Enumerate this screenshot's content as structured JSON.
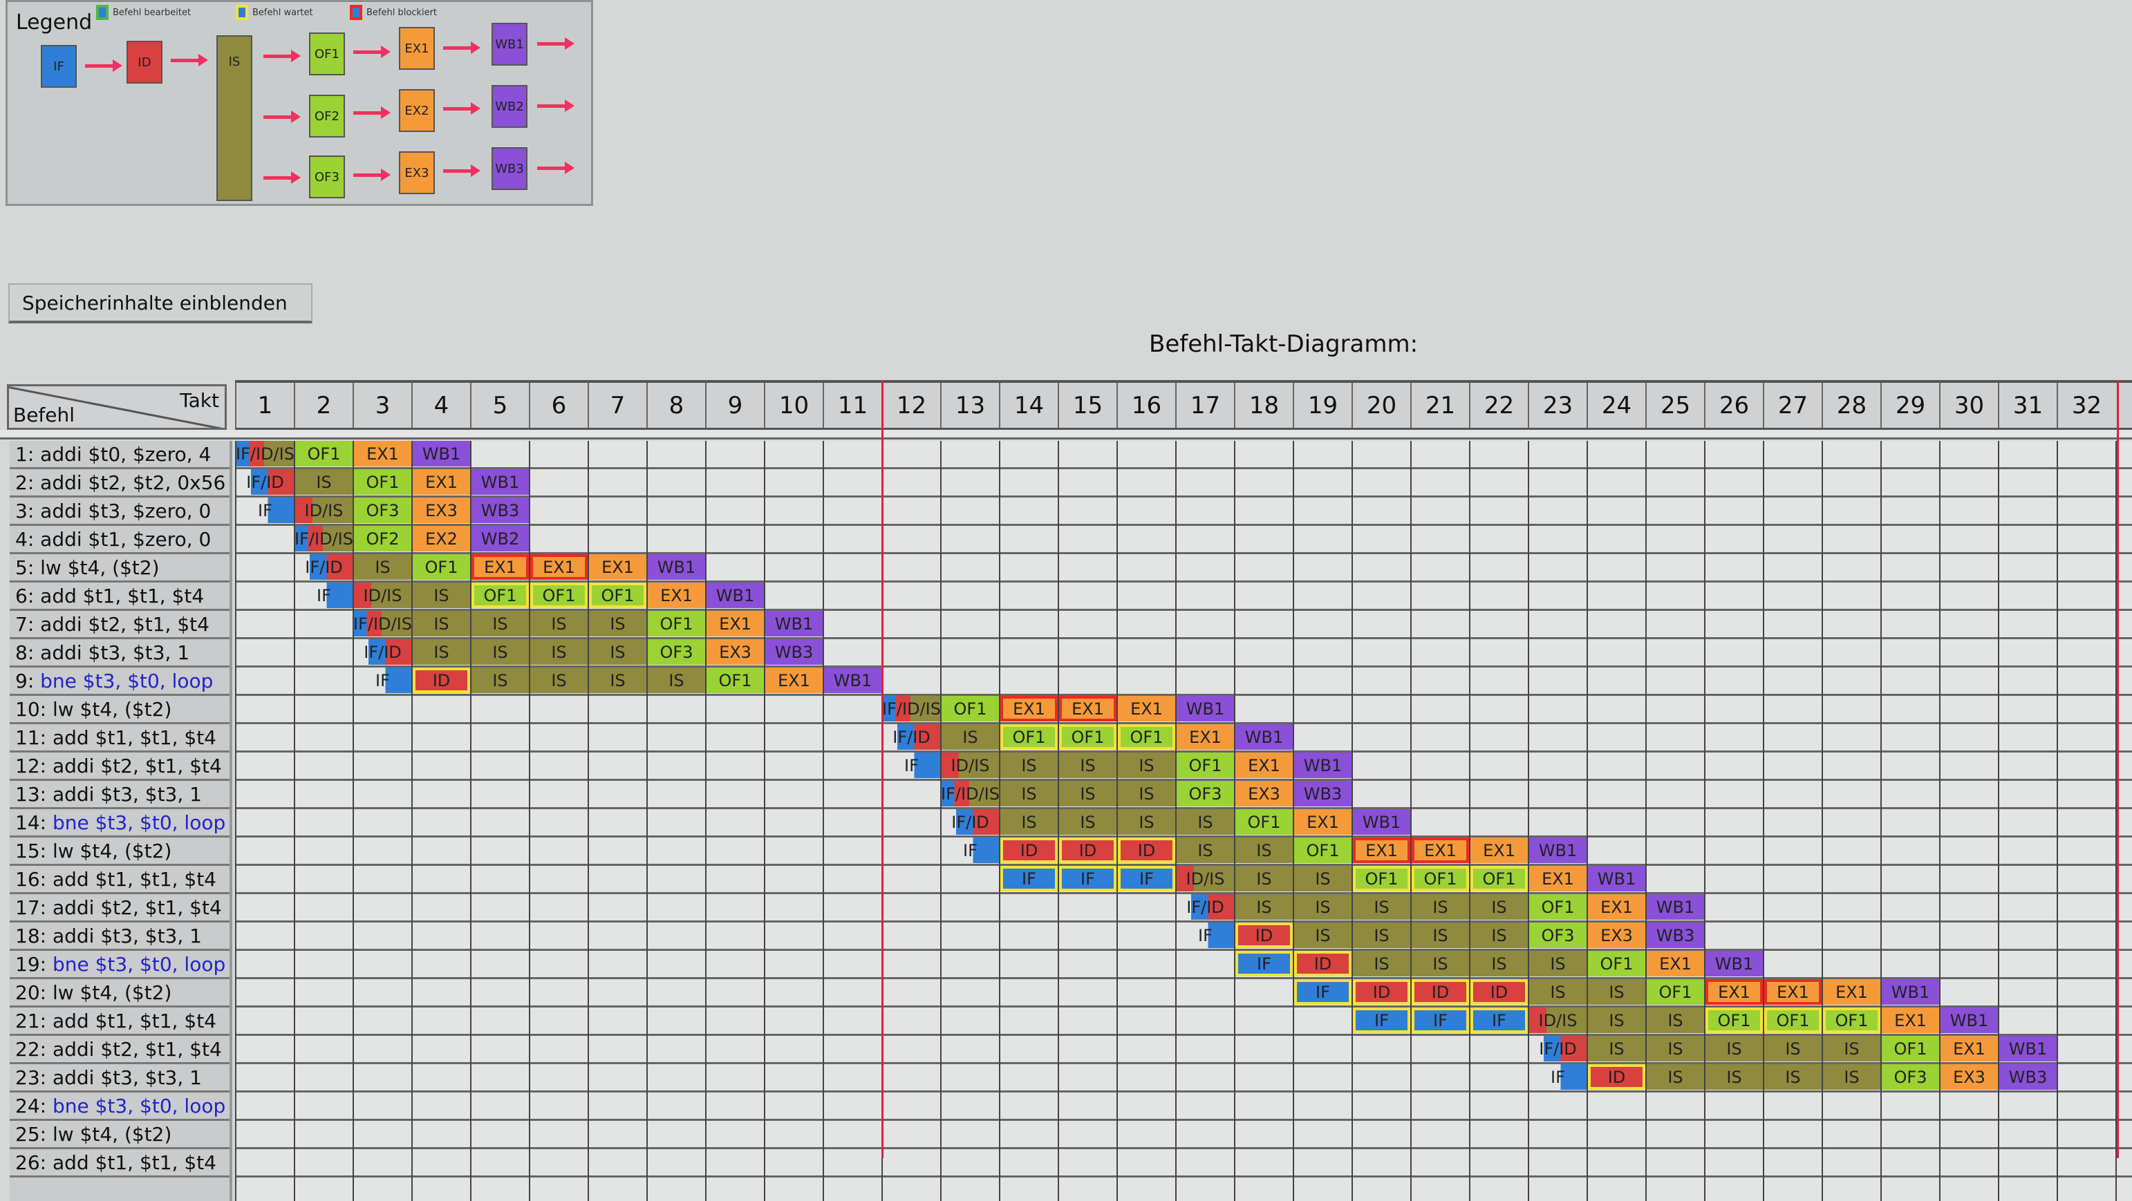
{
  "legend": {
    "title": "Legend",
    "keys": [
      {
        "label": "Befehl bearbeitet",
        "border": "#4ab84a"
      },
      {
        "label": "Befehl wartet",
        "border": "#f2e23a"
      },
      {
        "label": "Befehl blockiert",
        "border": "#ee2a20"
      }
    ],
    "stages": {
      "if": "IF",
      "id": "ID",
      "is": "IS",
      "of": [
        "OF1",
        "OF2",
        "OF3"
      ],
      "ex": [
        "EX1",
        "EX2",
        "EX3"
      ],
      "wb": [
        "WB1",
        "WB2",
        "WB3"
      ]
    }
  },
  "colors": {
    "IF": "#2f7fd8",
    "ID": "#d94040",
    "IS": "#8f8a3e",
    "OF": "#9bd234",
    "EX": "#f59a3a",
    "WB": "#8a50d8",
    "arrow": "#f03060",
    "marker": "#e0203a"
  },
  "show_memory_button": "Speicherinhalte einblenden",
  "diagram_title": "Befehl-Takt-Diagramm:",
  "corner": {
    "takt": "Takt",
    "befehl": "Befehl"
  },
  "cycles": [
    1,
    2,
    3,
    4,
    5,
    6,
    7,
    8,
    9,
    10,
    11,
    12,
    13,
    14,
    15,
    16,
    17,
    18,
    19,
    20,
    21,
    22,
    23,
    24,
    25,
    26,
    27,
    28,
    29,
    30,
    31,
    32
  ],
  "instructions": [
    {
      "num": "1:",
      "text": "addi $t0, $zero, 4",
      "branch": false,
      "cells": [
        {
          "c": 1,
          "t": "IF/ID/IS"
        },
        {
          "c": 2,
          "t": "OF1"
        },
        {
          "c": 3,
          "t": "EX1"
        },
        {
          "c": 4,
          "t": "WB1"
        }
      ]
    },
    {
      "num": "2:",
      "text": "addi $t2, $t2, 0x56",
      "branch": false,
      "cells": [
        {
          "c": 1,
          "t": "IF/ID"
        },
        {
          "c": 2,
          "t": "IS"
        },
        {
          "c": 3,
          "t": "OF1"
        },
        {
          "c": 4,
          "t": "EX1"
        },
        {
          "c": 5,
          "t": "WB1"
        }
      ]
    },
    {
      "num": "3:",
      "text": "addi $t3, $zero, 0",
      "branch": false,
      "cells": [
        {
          "c": 1,
          "t": "IF"
        },
        {
          "c": 2,
          "t": "ID/IS"
        },
        {
          "c": 3,
          "t": "OF3"
        },
        {
          "c": 4,
          "t": "EX3"
        },
        {
          "c": 5,
          "t": "WB3"
        }
      ]
    },
    {
      "num": "4:",
      "text": "addi $t1, $zero, 0",
      "branch": false,
      "cells": [
        {
          "c": 2,
          "t": "IF/ID/IS"
        },
        {
          "c": 3,
          "t": "OF2"
        },
        {
          "c": 4,
          "t": "EX2"
        },
        {
          "c": 5,
          "t": "WB2"
        }
      ]
    },
    {
      "num": "5:",
      "text": "lw $t4, ($t2)",
      "branch": false,
      "cells": [
        {
          "c": 2,
          "t": "IF/ID"
        },
        {
          "c": 3,
          "t": "IS"
        },
        {
          "c": 4,
          "t": "OF1"
        },
        {
          "c": 5,
          "t": "EX1",
          "m": "block"
        },
        {
          "c": 6,
          "t": "EX1",
          "m": "block"
        },
        {
          "c": 7,
          "t": "EX1"
        },
        {
          "c": 8,
          "t": "WB1"
        }
      ]
    },
    {
      "num": "6:",
      "text": "add $t1, $t1, $t4",
      "branch": false,
      "cells": [
        {
          "c": 2,
          "t": "IF"
        },
        {
          "c": 3,
          "t": "ID/IS"
        },
        {
          "c": 4,
          "t": "IS"
        },
        {
          "c": 5,
          "t": "OF1",
          "m": "wait"
        },
        {
          "c": 6,
          "t": "OF1",
          "m": "wait"
        },
        {
          "c": 7,
          "t": "OF1",
          "m": "wait"
        },
        {
          "c": 8,
          "t": "EX1"
        },
        {
          "c": 9,
          "t": "WB1"
        }
      ]
    },
    {
      "num": "7:",
      "text": "addi $t2, $t1, $t4",
      "branch": false,
      "cells": [
        {
          "c": 3,
          "t": "IF/ID/IS"
        },
        {
          "c": 4,
          "t": "IS"
        },
        {
          "c": 5,
          "t": "IS"
        },
        {
          "c": 6,
          "t": "IS"
        },
        {
          "c": 7,
          "t": "IS"
        },
        {
          "c": 8,
          "t": "OF1"
        },
        {
          "c": 9,
          "t": "EX1"
        },
        {
          "c": 10,
          "t": "WB1"
        }
      ]
    },
    {
      "num": "8:",
      "text": "addi $t3, $t3, 1",
      "branch": false,
      "cells": [
        {
          "c": 3,
          "t": "IF/ID"
        },
        {
          "c": 4,
          "t": "IS"
        },
        {
          "c": 5,
          "t": "IS"
        },
        {
          "c": 6,
          "t": "IS"
        },
        {
          "c": 7,
          "t": "IS"
        },
        {
          "c": 8,
          "t": "OF3"
        },
        {
          "c": 9,
          "t": "EX3"
        },
        {
          "c": 10,
          "t": "WB3"
        }
      ]
    },
    {
      "num": "9:",
      "text": "bne $t3, $t0, loop",
      "branch": true,
      "cells": [
        {
          "c": 3,
          "t": "IF"
        },
        {
          "c": 4,
          "t": "ID",
          "m": "wait"
        },
        {
          "c": 5,
          "t": "IS"
        },
        {
          "c": 6,
          "t": "IS"
        },
        {
          "c": 7,
          "t": "IS"
        },
        {
          "c": 8,
          "t": "IS"
        },
        {
          "c": 9,
          "t": "OF1"
        },
        {
          "c": 10,
          "t": "EX1"
        },
        {
          "c": 11,
          "t": "WB1"
        }
      ]
    },
    {
      "num": "10:",
      "text": "lw $t4, ($t2)",
      "branch": false,
      "cells": [
        {
          "c": 12,
          "t": "IF/ID/IS"
        },
        {
          "c": 13,
          "t": "OF1"
        },
        {
          "c": 14,
          "t": "EX1",
          "m": "block"
        },
        {
          "c": 15,
          "t": "EX1",
          "m": "block"
        },
        {
          "c": 16,
          "t": "EX1"
        },
        {
          "c": 17,
          "t": "WB1"
        }
      ]
    },
    {
      "num": "11:",
      "text": "add $t1, $t1, $t4",
      "branch": false,
      "cells": [
        {
          "c": 12,
          "t": "IF/ID"
        },
        {
          "c": 13,
          "t": "IS"
        },
        {
          "c": 14,
          "t": "OF1",
          "m": "wait"
        },
        {
          "c": 15,
          "t": "OF1",
          "m": "wait"
        },
        {
          "c": 16,
          "t": "OF1",
          "m": "wait"
        },
        {
          "c": 17,
          "t": "EX1"
        },
        {
          "c": 18,
          "t": "WB1"
        }
      ]
    },
    {
      "num": "12:",
      "text": "addi $t2, $t1, $t4",
      "branch": false,
      "cells": [
        {
          "c": 12,
          "t": "IF"
        },
        {
          "c": 13,
          "t": "ID/IS"
        },
        {
          "c": 14,
          "t": "IS"
        },
        {
          "c": 15,
          "t": "IS"
        },
        {
          "c": 16,
          "t": "IS"
        },
        {
          "c": 17,
          "t": "OF1"
        },
        {
          "c": 18,
          "t": "EX1"
        },
        {
          "c": 19,
          "t": "WB1"
        }
      ]
    },
    {
      "num": "13:",
      "text": "addi $t3, $t3, 1",
      "branch": false,
      "cells": [
        {
          "c": 13,
          "t": "IF/ID/IS"
        },
        {
          "c": 14,
          "t": "IS"
        },
        {
          "c": 15,
          "t": "IS"
        },
        {
          "c": 16,
          "t": "IS"
        },
        {
          "c": 17,
          "t": "OF3"
        },
        {
          "c": 18,
          "t": "EX3"
        },
        {
          "c": 19,
          "t": "WB3"
        }
      ]
    },
    {
      "num": "14:",
      "text": "bne $t3, $t0, loop",
      "branch": true,
      "cells": [
        {
          "c": 13,
          "t": "IF/ID"
        },
        {
          "c": 14,
          "t": "IS"
        },
        {
          "c": 15,
          "t": "IS"
        },
        {
          "c": 16,
          "t": "IS"
        },
        {
          "c": 17,
          "t": "IS"
        },
        {
          "c": 18,
          "t": "OF1"
        },
        {
          "c": 19,
          "t": "EX1"
        },
        {
          "c": 20,
          "t": "WB1"
        }
      ]
    },
    {
      "num": "15:",
      "text": "lw $t4, ($t2)",
      "branch": false,
      "cells": [
        {
          "c": 13,
          "t": "IF"
        },
        {
          "c": 14,
          "t": "ID",
          "m": "wait"
        },
        {
          "c": 15,
          "t": "ID",
          "m": "wait"
        },
        {
          "c": 16,
          "t": "ID",
          "m": "wait"
        },
        {
          "c": 17,
          "t": "IS"
        },
        {
          "c": 18,
          "t": "IS"
        },
        {
          "c": 19,
          "t": "OF1"
        },
        {
          "c": 20,
          "t": "EX1",
          "m": "block"
        },
        {
          "c": 21,
          "t": "EX1",
          "m": "block"
        },
        {
          "c": 22,
          "t": "EX1"
        },
        {
          "c": 23,
          "t": "WB1"
        }
      ]
    },
    {
      "num": "16:",
      "text": "add $t1, $t1, $t4",
      "branch": false,
      "cells": [
        {
          "c": 14,
          "t": "IF",
          "m": "wait"
        },
        {
          "c": 15,
          "t": "IF",
          "m": "wait"
        },
        {
          "c": 16,
          "t": "IF",
          "m": "wait"
        },
        {
          "c": 17,
          "t": "ID/IS"
        },
        {
          "c": 18,
          "t": "IS"
        },
        {
          "c": 19,
          "t": "IS"
        },
        {
          "c": 20,
          "t": "OF1",
          "m": "wait"
        },
        {
          "c": 21,
          "t": "OF1",
          "m": "wait"
        },
        {
          "c": 22,
          "t": "OF1",
          "m": "wait"
        },
        {
          "c": 23,
          "t": "EX1"
        },
        {
          "c": 24,
          "t": "WB1"
        }
      ]
    },
    {
      "num": "17:",
      "text": "addi $t2, $t1, $t4",
      "branch": false,
      "cells": [
        {
          "c": 17,
          "t": "IF/ID"
        },
        {
          "c": 18,
          "t": "IS"
        },
        {
          "c": 19,
          "t": "IS"
        },
        {
          "c": 20,
          "t": "IS"
        },
        {
          "c": 21,
          "t": "IS"
        },
        {
          "c": 22,
          "t": "IS"
        },
        {
          "c": 23,
          "t": "OF1"
        },
        {
          "c": 24,
          "t": "EX1"
        },
        {
          "c": 25,
          "t": "WB1"
        }
      ]
    },
    {
      "num": "18:",
      "text": "addi $t3, $t3, 1",
      "branch": false,
      "cells": [
        {
          "c": 17,
          "t": "IF"
        },
        {
          "c": 18,
          "t": "ID",
          "m": "wait"
        },
        {
          "c": 19,
          "t": "IS"
        },
        {
          "c": 20,
          "t": "IS"
        },
        {
          "c": 21,
          "t": "IS"
        },
        {
          "c": 22,
          "t": "IS"
        },
        {
          "c": 23,
          "t": "OF3"
        },
        {
          "c": 24,
          "t": "EX3"
        },
        {
          "c": 25,
          "t": "WB3"
        }
      ]
    },
    {
      "num": "19:",
      "text": "bne $t3, $t0, loop",
      "branch": true,
      "cells": [
        {
          "c": 18,
          "t": "IF",
          "m": "wait"
        },
        {
          "c": 19,
          "t": "ID",
          "m": "wait"
        },
        {
          "c": 20,
          "t": "IS"
        },
        {
          "c": 21,
          "t": "IS"
        },
        {
          "c": 22,
          "t": "IS"
        },
        {
          "c": 23,
          "t": "IS"
        },
        {
          "c": 24,
          "t": "OF1"
        },
        {
          "c": 25,
          "t": "EX1"
        },
        {
          "c": 26,
          "t": "WB1"
        }
      ]
    },
    {
      "num": "20:",
      "text": "lw $t4, ($t2)",
      "branch": false,
      "cells": [
        {
          "c": 19,
          "t": "IF",
          "m": "wait"
        },
        {
          "c": 20,
          "t": "ID",
          "m": "wait"
        },
        {
          "c": 21,
          "t": "ID",
          "m": "wait"
        },
        {
          "c": 22,
          "t": "ID",
          "m": "wait"
        },
        {
          "c": 23,
          "t": "IS"
        },
        {
          "c": 24,
          "t": "IS"
        },
        {
          "c": 25,
          "t": "OF1"
        },
        {
          "c": 26,
          "t": "EX1",
          "m": "block"
        },
        {
          "c": 27,
          "t": "EX1",
          "m": "block"
        },
        {
          "c": 28,
          "t": "EX1"
        },
        {
          "c": 29,
          "t": "WB1"
        }
      ]
    },
    {
      "num": "21:",
      "text": "add $t1, $t1, $t4",
      "branch": false,
      "cells": [
        {
          "c": 20,
          "t": "IF",
          "m": "wait"
        },
        {
          "c": 21,
          "t": "IF",
          "m": "wait"
        },
        {
          "c": 22,
          "t": "IF",
          "m": "wait"
        },
        {
          "c": 23,
          "t": "ID/IS"
        },
        {
          "c": 24,
          "t": "IS"
        },
        {
          "c": 25,
          "t": "IS"
        },
        {
          "c": 26,
          "t": "OF1",
          "m": "wait"
        },
        {
          "c": 27,
          "t": "OF1",
          "m": "wait"
        },
        {
          "c": 28,
          "t": "OF1",
          "m": "wait"
        },
        {
          "c": 29,
          "t": "EX1"
        },
        {
          "c": 30,
          "t": "WB1"
        }
      ]
    },
    {
      "num": "22:",
      "text": "addi $t2, $t1, $t4",
      "branch": false,
      "cells": [
        {
          "c": 23,
          "t": "IF/ID"
        },
        {
          "c": 24,
          "t": "IS"
        },
        {
          "c": 25,
          "t": "IS"
        },
        {
          "c": 26,
          "t": "IS"
        },
        {
          "c": 27,
          "t": "IS"
        },
        {
          "c": 28,
          "t": "IS"
        },
        {
          "c": 29,
          "t": "OF1"
        },
        {
          "c": 30,
          "t": "EX1"
        },
        {
          "c": 31,
          "t": "WB1"
        }
      ]
    },
    {
      "num": "23:",
      "text": "addi $t3, $t3, 1",
      "branch": false,
      "cells": [
        {
          "c": 23,
          "t": "IF"
        },
        {
          "c": 24,
          "t": "ID",
          "m": "wait"
        },
        {
          "c": 25,
          "t": "IS"
        },
        {
          "c": 26,
          "t": "IS"
        },
        {
          "c": 27,
          "t": "IS"
        },
        {
          "c": 28,
          "t": "IS"
        },
        {
          "c": 29,
          "t": "OF3"
        },
        {
          "c": 30,
          "t": "EX3"
        },
        {
          "c": 31,
          "t": "WB3"
        }
      ]
    },
    {
      "num": "24:",
      "text": "bne $t3, $t0, loop",
      "branch": true,
      "cells": []
    },
    {
      "num": "25:",
      "text": "lw $t4, ($t2)",
      "branch": false,
      "cells": []
    },
    {
      "num": "26:",
      "text": "add $t1, $t1, $t4",
      "branch": false,
      "cells": []
    }
  ]
}
